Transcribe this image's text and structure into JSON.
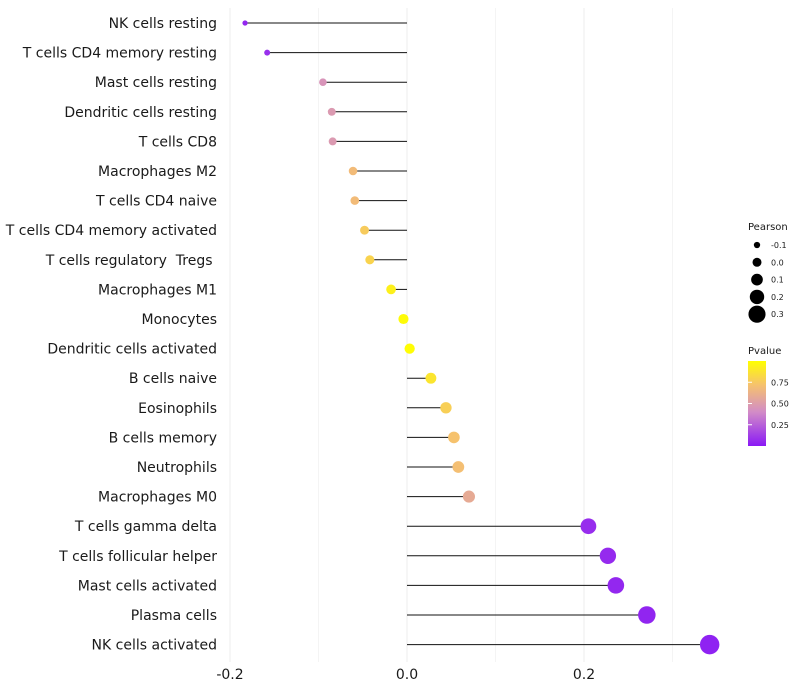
{
  "chart_data": {
    "type": "lollipop",
    "title": "",
    "xlabel": "",
    "ylabel": "",
    "xlim": [
      -0.2,
      0.35
    ],
    "x_ticks": [
      -0.2,
      0.0,
      0.2
    ],
    "x_tick_labels": [
      "-0.2",
      "0.0",
      "0.2"
    ],
    "grid": true,
    "categories": [
      "NK cells resting",
      "T cells CD4 memory resting",
      "Mast cells resting",
      "Dendritic cells resting",
      "T cells CD8",
      "Macrophages M2",
      "T cells CD4 naive",
      "T cells CD4 memory activated",
      "T cells regulatory  Tregs ",
      "Macrophages M1",
      "Monocytes",
      "Dendritic cells activated",
      "B cells naive",
      "Eosinophils",
      "B cells memory",
      "Neutrophils",
      "Macrophages M0",
      "T cells gamma delta",
      "T cells follicular helper",
      "Mast cells activated",
      "Plasma cells",
      "NK cells activated"
    ],
    "pearson": [
      -0.183,
      -0.158,
      -0.095,
      -0.085,
      -0.084,
      -0.061,
      -0.059,
      -0.048,
      -0.042,
      -0.018,
      -0.004,
      0.003,
      0.027,
      0.044,
      0.053,
      0.058,
      0.07,
      0.205,
      0.227,
      0.236,
      0.271,
      0.342
    ],
    "pvalue": [
      0.05,
      0.08,
      0.45,
      0.48,
      0.48,
      0.68,
      0.68,
      0.76,
      0.8,
      0.93,
      0.98,
      0.99,
      0.88,
      0.78,
      0.72,
      0.7,
      0.58,
      0.07,
      0.06,
      0.05,
      0.04,
      0.03
    ],
    "legend_size": {
      "title": "Pearson",
      "labels": [
        "-0.1",
        "0.0",
        "0.1",
        "0.2",
        "0.3"
      ],
      "values": [
        -0.1,
        0.0,
        0.1,
        0.2,
        0.3
      ]
    },
    "legend_color": {
      "title": "Pvalue",
      "labels": [
        "0.75",
        "0.50",
        "0.25"
      ],
      "values": [
        0.75,
        0.5,
        0.25
      ],
      "colors": [
        "#8a19f5",
        "#d28cc7",
        "#f6c26d",
        "#ffff00"
      ]
    }
  }
}
